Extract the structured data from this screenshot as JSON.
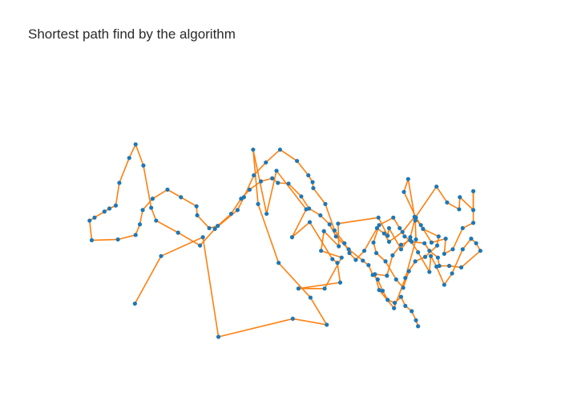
{
  "chart_data": {
    "type": "line",
    "title": "Shortest path find by the algorithm",
    "xlabel": "",
    "ylabel": "",
    "xlim": [
      0,
      600
    ],
    "ylim": [
      0,
      340
    ],
    "grid": false,
    "axes_visible": false,
    "legend": "none",
    "colors": {
      "line": "#ff7f0e",
      "marker": "#1f77b4"
    },
    "points": [
      [
        100,
        44
      ],
      [
        137,
        107
      ],
      [
        196,
        132
      ],
      [
        218,
        0
      ],
      [
        323,
        24
      ],
      [
        371,
        16
      ],
      [
        348,
        52
      ],
      [
        303,
        98
      ],
      [
        274,
        176
      ],
      [
        267,
        248
      ],
      [
        286,
        163
      ],
      [
        300,
        220
      ],
      [
        342,
        169
      ],
      [
        322,
        132
      ],
      [
        347,
        152
      ],
      [
        379,
        103
      ],
      [
        386,
        98
      ],
      [
        390,
        72
      ],
      [
        331,
        64
      ],
      [
        368,
        64
      ],
      [
        392,
        105
      ],
      [
        363,
        114
      ],
      [
        367,
        140
      ],
      [
        388,
        120
      ],
      [
        387,
        150
      ],
      [
        444,
        158
      ],
      [
        457,
        134
      ],
      [
        459,
        144
      ],
      [
        476,
        116
      ],
      [
        489,
        132
      ],
      [
        496,
        158
      ],
      [
        526,
        199
      ],
      [
        541,
        178
      ],
      [
        558,
        169
      ],
      [
        559,
        185
      ],
      [
        578,
        168
      ],
      [
        578,
        193
      ],
      [
        578,
        151
      ],
      [
        563,
        144
      ],
      [
        549,
        116
      ],
      [
        537,
        110
      ],
      [
        539,
        130
      ],
      [
        519,
        125
      ],
      [
        504,
        148
      ],
      [
        497,
        158
      ],
      [
        480,
        192
      ],
      [
        486,
        209
      ],
      [
        496,
        154
      ],
      [
        497,
        129
      ],
      [
        482,
        78
      ],
      [
        466,
        38
      ],
      [
        445,
        62
      ],
      [
        439,
        83
      ],
      [
        456,
        81
      ],
      [
        464,
        108
      ],
      [
        476,
        122
      ],
      [
        489,
        128
      ],
      [
        500,
        112
      ],
      [
        516,
        86
      ],
      [
        518,
        107
      ],
      [
        526,
        93
      ],
      [
        537,
        69
      ],
      [
        548,
        84
      ],
      [
        563,
        116
      ],
      [
        575,
        130
      ],
      [
        582,
        124
      ],
      [
        588,
        114
      ],
      [
        561,
        92
      ],
      [
        544,
        94
      ],
      [
        530,
        94
      ],
      [
        528,
        105
      ],
      [
        516,
        114
      ],
      [
        509,
        124
      ],
      [
        491,
        126
      ],
      [
        481,
        133
      ],
      [
        474,
        144
      ],
      [
        465,
        158
      ],
      [
        445,
        148
      ],
      [
        437,
        125
      ],
      [
        441,
        111
      ],
      [
        454,
        100
      ],
      [
        469,
        76
      ],
      [
        479,
        65
      ],
      [
        487,
        87
      ],
      [
        496,
        100
      ],
      [
        510,
        106
      ],
      [
        527,
        121
      ],
      [
        529,
        133
      ],
      [
        507,
        143
      ],
      [
        495,
        159
      ],
      [
        478,
        139
      ],
      [
        459,
        126
      ],
      [
        452,
        137
      ],
      [
        442,
        144
      ],
      [
        424,
        114
      ],
      [
        412,
        102
      ],
      [
        403,
        111
      ],
      [
        396,
        124
      ],
      [
        382,
        141
      ],
      [
        369,
        176
      ],
      [
        352,
        197
      ],
      [
        351,
        205
      ],
      [
        345,
        214
      ],
      [
        329,
        233
      ],
      [
        305,
        248
      ],
      [
        285,
        231
      ],
      [
        268,
        214
      ],
      [
        254,
        185
      ],
      [
        245,
        168
      ],
      [
        213,
        143
      ],
      [
        192,
        121
      ],
      [
        161,
        138
      ],
      [
        130,
        154
      ],
      [
        123,
        171
      ],
      [
        112,
        227
      ],
      [
        101,
        255
      ],
      [
        92,
        237
      ],
      [
        78,
        204
      ],
      [
        73,
        174
      ],
      [
        64,
        170
      ],
      [
        57,
        166
      ],
      [
        43,
        158
      ],
      [
        36,
        154
      ],
      [
        39,
        128
      ],
      [
        76,
        129
      ],
      [
        101,
        135
      ],
      [
        107,
        149
      ],
      [
        111,
        168
      ],
      [
        125,
        183
      ],
      [
        146,
        195
      ],
      [
        165,
        185
      ],
      [
        187,
        173
      ],
      [
        188,
        161
      ],
      [
        205,
        144
      ],
      [
        217,
        147
      ],
      [
        236,
        163
      ],
      [
        250,
        183
      ],
      [
        262,
        195
      ],
      [
        278,
        206
      ],
      [
        294,
        210
      ],
      [
        302,
        204
      ],
      [
        317,
        203
      ],
      [
        335,
        186
      ],
      [
        346,
        170
      ],
      [
        362,
        161
      ],
      [
        375,
        149
      ],
      [
        384,
        133
      ],
      [
        402,
        116
      ],
      [
        422,
        101
      ],
      [
        430,
        95
      ],
      [
        436,
        82
      ],
      [
        443,
        76
      ],
      [
        450,
        61
      ],
      [
        457,
        49
      ],
      [
        467,
        45
      ],
      [
        476,
        53
      ],
      [
        482,
        41
      ],
      [
        491,
        34
      ],
      [
        497,
        22
      ],
      [
        500,
        14
      ]
    ]
  }
}
